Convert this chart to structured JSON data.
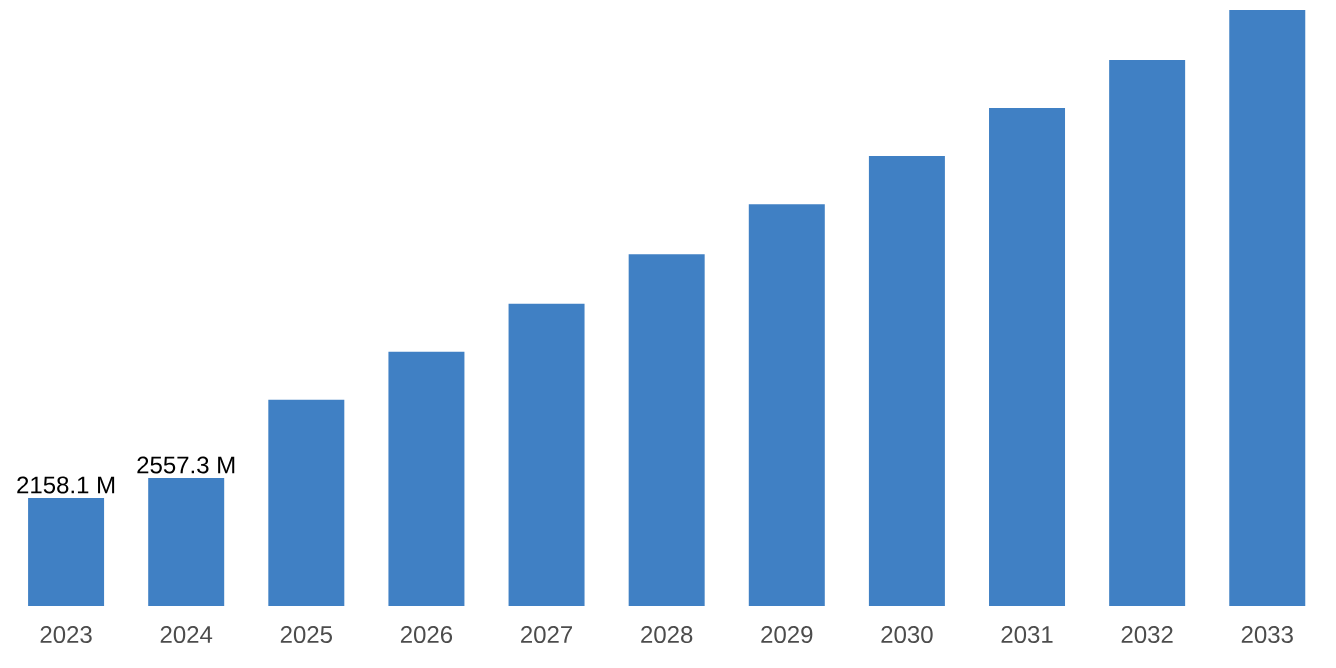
{
  "chart_data": {
    "type": "bar",
    "categories": [
      "2023",
      "2024",
      "2025",
      "2026",
      "2027",
      "2028",
      "2029",
      "2030",
      "2031",
      "2032",
      "2033"
    ],
    "values": [
      2158.1,
      2557.3,
      4120,
      5080,
      6040,
      7030,
      8030,
      8990,
      9950,
      10910,
      11910
    ],
    "value_labels": [
      "2158.1 M",
      "2557.3 M",
      null,
      null,
      null,
      null,
      null,
      null,
      null,
      null,
      null
    ],
    "color": "#4080c4"
  }
}
